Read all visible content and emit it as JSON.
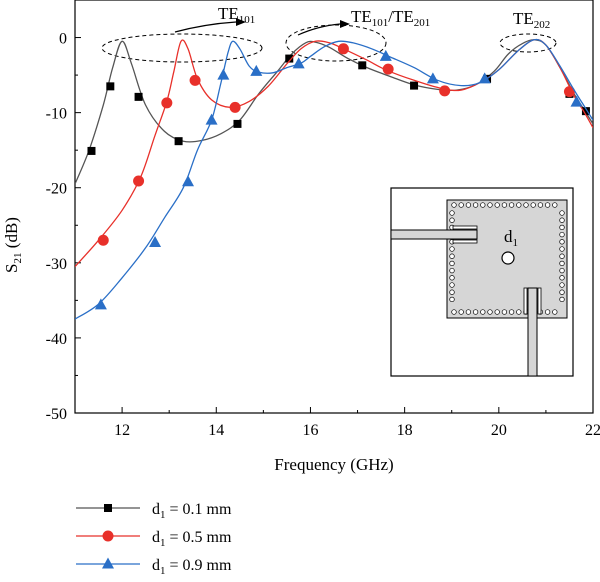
{
  "chart_data": {
    "type": "line",
    "title": "",
    "xlabel": "Frequency (GHz)",
    "ylabel": {
      "main": "S",
      "sub": "21",
      "unit": " (dB)"
    },
    "xlim": [
      11,
      22
    ],
    "ylim": [
      -50,
      5
    ],
    "xticks": [
      12,
      14,
      16,
      18,
      20,
      22
    ],
    "yticks": [
      0,
      -10,
      -20,
      -30,
      -40,
      -50
    ],
    "grid": false,
    "legend_position": "bottom-left",
    "annotations": [
      {
        "id": "te101",
        "main": "TE",
        "sub": "101",
        "suffix_main": "",
        "suffix_sub": "",
        "x": 13.0,
        "y": -1.5
      },
      {
        "id": "te101-201",
        "main": "TE",
        "sub": "101",
        "suffix_main": "/TE",
        "suffix_sub": "201",
        "x": 16.5,
        "y": -1.5
      },
      {
        "id": "te202",
        "main": "TE",
        "sub": "202",
        "suffix_main": "",
        "suffix_sub": "",
        "x": 20.7,
        "y": -0.5
      }
    ],
    "inset": {
      "label_main": "d",
      "label_sub": "1"
    },
    "series": [
      {
        "name": "d1 = 0.1 mm",
        "legend": {
          "main": "d",
          "sub": "1",
          "rest": " = 0.1 mm"
        },
        "color": "#555555",
        "marker": "square",
        "marker_color": "#000000",
        "curve": [
          [
            11,
            -19.5
          ],
          [
            11.3,
            -15
          ],
          [
            11.6,
            -9
          ],
          [
            11.8,
            -4
          ],
          [
            12.0,
            -0.5
          ],
          [
            12.2,
            -3.5
          ],
          [
            12.5,
            -9
          ],
          [
            12.9,
            -12.5
          ],
          [
            13.3,
            -13.8
          ],
          [
            13.7,
            -13.7
          ],
          [
            14.1,
            -12.8
          ],
          [
            14.5,
            -11
          ],
          [
            14.9,
            -7.5
          ],
          [
            15.3,
            -4.5
          ],
          [
            15.6,
            -2.2
          ],
          [
            15.9,
            -0.7
          ],
          [
            16.1,
            -0.6
          ],
          [
            16.4,
            -1.3
          ],
          [
            16.8,
            -2.8
          ],
          [
            17.2,
            -4
          ],
          [
            17.7,
            -5.2
          ],
          [
            18.2,
            -6.3
          ],
          [
            18.7,
            -6.9
          ],
          [
            19.1,
            -7
          ],
          [
            19.5,
            -6.3
          ],
          [
            19.9,
            -4.5
          ],
          [
            20.2,
            -2.2
          ],
          [
            20.5,
            -0.8
          ],
          [
            20.75,
            -0.3
          ],
          [
            21.0,
            -1
          ],
          [
            21.3,
            -4
          ],
          [
            21.6,
            -7.5
          ],
          [
            21.8,
            -9.5
          ],
          [
            22,
            -11.5
          ]
        ],
        "markers": [
          [
            11.35,
            -15.1
          ],
          [
            11.75,
            -6.5
          ],
          [
            12.35,
            -7.9
          ],
          [
            13.2,
            -13.8
          ],
          [
            14.45,
            -11.5
          ],
          [
            15.55,
            -2.8
          ],
          [
            17.1,
            -3.7
          ],
          [
            18.2,
            -6.4
          ],
          [
            19.75,
            -5.5
          ],
          [
            21.5,
            -7.5
          ],
          [
            21.85,
            -9.8
          ]
        ]
      },
      {
        "name": "d1 = 0.5 mm",
        "legend": {
          "main": "d",
          "sub": "1",
          "rest": " = 0.5 mm"
        },
        "color": "#e8302a",
        "marker": "circle",
        "marker_color": "#e8302a",
        "curve": [
          [
            11,
            -30.5
          ],
          [
            11.5,
            -27
          ],
          [
            12.0,
            -23
          ],
          [
            12.4,
            -18.5
          ],
          [
            12.7,
            -13
          ],
          [
            12.95,
            -8.5
          ],
          [
            13.1,
            -4.5
          ],
          [
            13.25,
            -0.5
          ],
          [
            13.4,
            -1.5
          ],
          [
            13.6,
            -5.5
          ],
          [
            13.9,
            -8.3
          ],
          [
            14.3,
            -9.3
          ],
          [
            14.7,
            -8.5
          ],
          [
            15.1,
            -6.5
          ],
          [
            15.5,
            -3.5
          ],
          [
            15.8,
            -1.5
          ],
          [
            16.1,
            -0.5
          ],
          [
            16.4,
            -0.7
          ],
          [
            16.7,
            -1.5
          ],
          [
            17.2,
            -3
          ],
          [
            17.6,
            -4.3
          ],
          [
            18.2,
            -5.7
          ],
          [
            18.8,
            -6.8
          ],
          [
            19.2,
            -7
          ],
          [
            19.6,
            -6
          ],
          [
            20.0,
            -4.3
          ],
          [
            20.4,
            -1.8
          ],
          [
            20.75,
            -0.3
          ],
          [
            21.0,
            -1
          ],
          [
            21.3,
            -4
          ],
          [
            21.6,
            -7.8
          ],
          [
            21.8,
            -9.8
          ],
          [
            22,
            -12
          ]
        ],
        "markers": [
          [
            11.6,
            -27
          ],
          [
            12.35,
            -19.1
          ],
          [
            12.95,
            -8.7
          ],
          [
            13.55,
            -5.7
          ],
          [
            14.4,
            -9.3
          ],
          [
            16.7,
            -1.5
          ],
          [
            17.65,
            -4.2
          ],
          [
            18.85,
            -7.1
          ],
          [
            21.5,
            -7.2
          ]
        ]
      },
      {
        "name": "d1 = 0.9 mm",
        "legend": {
          "main": "d",
          "sub": "1",
          "rest": " = 0.9 mm"
        },
        "color": "#2a6fc7",
        "marker": "triangle",
        "marker_color": "#2a6fc7",
        "curve": [
          [
            11,
            -37.5
          ],
          [
            11.5,
            -35.5
          ],
          [
            12.0,
            -32
          ],
          [
            12.5,
            -28
          ],
          [
            12.9,
            -24
          ],
          [
            13.3,
            -20
          ],
          [
            13.6,
            -15
          ],
          [
            13.9,
            -11
          ],
          [
            14.1,
            -6
          ],
          [
            14.25,
            -2
          ],
          [
            14.35,
            -0.5
          ],
          [
            14.5,
            -1.5
          ],
          [
            14.7,
            -3.8
          ],
          [
            14.9,
            -4.6
          ],
          [
            15.2,
            -4.7
          ],
          [
            15.5,
            -4
          ],
          [
            15.8,
            -3.4
          ],
          [
            16.0,
            -2.5
          ],
          [
            16.3,
            -1.2
          ],
          [
            16.6,
            -0.5
          ],
          [
            16.9,
            -0.7
          ],
          [
            17.3,
            -1.5
          ],
          [
            17.7,
            -2.6
          ],
          [
            18.2,
            -4
          ],
          [
            18.7,
            -5.7
          ],
          [
            19.2,
            -6.4
          ],
          [
            19.6,
            -6
          ],
          [
            20.0,
            -4.3
          ],
          [
            20.4,
            -1.8
          ],
          [
            20.75,
            -0.3
          ],
          [
            21.0,
            -1
          ],
          [
            21.3,
            -3.8
          ],
          [
            21.6,
            -7
          ],
          [
            21.8,
            -9
          ],
          [
            22,
            -11
          ]
        ],
        "markers": [
          [
            11.55,
            -35.6
          ],
          [
            12.7,
            -27.3
          ],
          [
            13.4,
            -19.2
          ],
          [
            13.9,
            -11
          ],
          [
            14.15,
            -5
          ],
          [
            14.85,
            -4.5
          ],
          [
            15.75,
            -3.5
          ],
          [
            17.6,
            -2.5
          ],
          [
            18.6,
            -5.5
          ],
          [
            19.7,
            -5.5
          ],
          [
            21.65,
            -8.6
          ]
        ]
      }
    ]
  }
}
